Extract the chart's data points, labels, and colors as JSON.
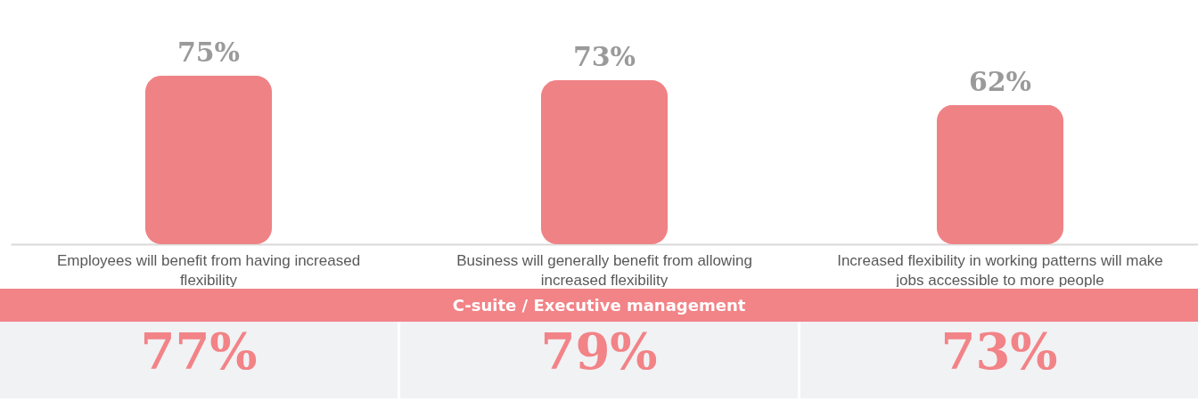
{
  "chart_data": {
    "type": "bar",
    "categories": [
      "Employees will benefit from having increased flexibility",
      "Business will generally benefit from allowing increased flexibility",
      "Increased flexibility in working patterns will make jobs accessible to more people"
    ],
    "values": [
      75,
      73,
      62
    ],
    "color": "#ef8285",
    "value_labels": [
      "75%",
      "73%",
      "62%"
    ],
    "annotations": [
      "C-suite / Executive management",
      "77%",
      "79%",
      "73%"
    ]
  }
}
